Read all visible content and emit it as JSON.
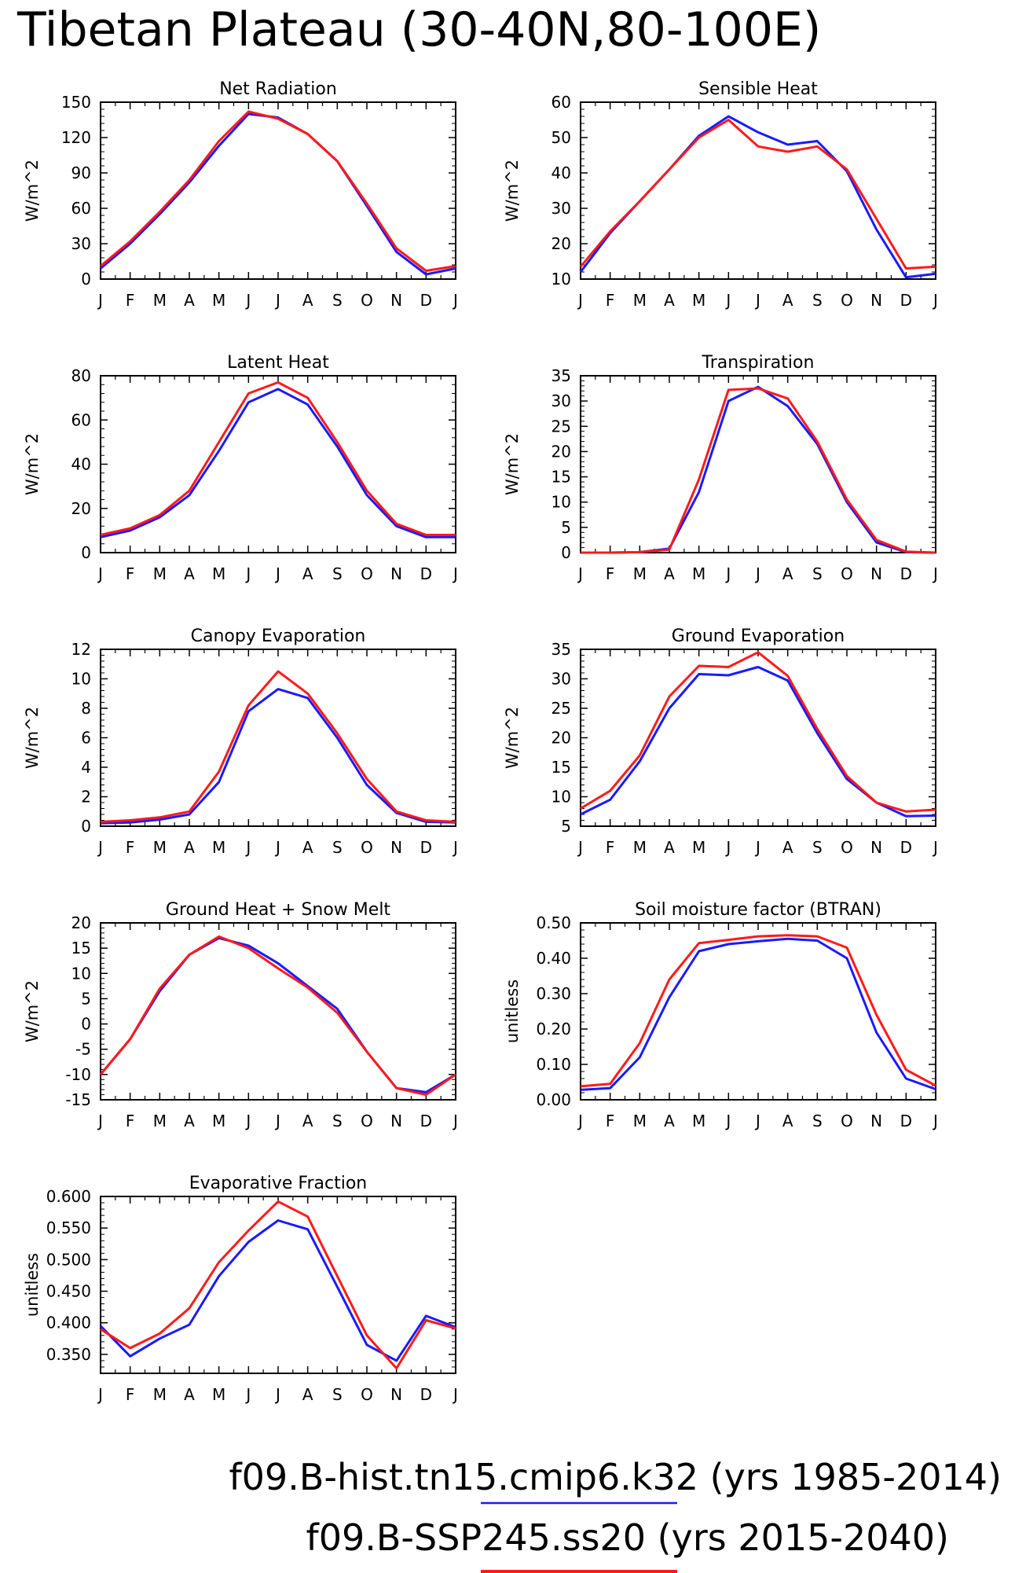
{
  "title": "Tibetan Plateau (30-40N,80-100E)",
  "legend": [
    {
      "text": "f09.B-hist.tn15.cmip6.k32 (yrs 1985-2014)",
      "color": "#1a1aff"
    },
    {
      "text": "f09.B-SSP245.ss20 (yrs 2015-2040)",
      "color": "#ff1a1a"
    }
  ],
  "colors": {
    "hist": "#1a1aff",
    "ssp": "#ff1a1a"
  },
  "chart_data": [
    {
      "type": "line",
      "title": "Net Radiation",
      "ylabel": "W/m^2",
      "categories": [
        "J",
        "F",
        "M",
        "A",
        "M",
        "J",
        "J",
        "A",
        "S",
        "O",
        "N",
        "D",
        "J"
      ],
      "ylim": [
        0,
        150
      ],
      "yticks": [
        0,
        30,
        60,
        90,
        120,
        150
      ],
      "ytick_labels": [
        "0",
        "30",
        "60",
        "90",
        "120",
        "150"
      ],
      "series": [
        {
          "color": "#1a1aff",
          "values": [
            9,
            30,
            55,
            82,
            113,
            140,
            137,
            123,
            100,
            62,
            23,
            4,
            9
          ]
        },
        {
          "color": "#ff1a1a",
          "values": [
            11,
            32,
            57,
            84,
            117,
            142,
            136,
            123,
            100,
            64,
            26,
            7,
            11
          ]
        }
      ]
    },
    {
      "type": "line",
      "title": "Sensible Heat",
      "ylabel": "W/m^2",
      "categories": [
        "J",
        "F",
        "M",
        "A",
        "M",
        "J",
        "J",
        "A",
        "S",
        "O",
        "N",
        "D",
        "J"
      ],
      "ylim": [
        10,
        60
      ],
      "yticks": [
        10,
        20,
        30,
        40,
        50,
        60
      ],
      "ytick_labels": [
        "10",
        "20",
        "30",
        "40",
        "50",
        "60"
      ],
      "series": [
        {
          "color": "#1a1aff",
          "values": [
            12,
            23,
            32,
            41,
            50.5,
            56,
            51.5,
            48,
            49,
            40.5,
            24,
            10.5,
            11.5
          ]
        },
        {
          "color": "#ff1a1a",
          "values": [
            13.5,
            23.5,
            32,
            41,
            50,
            55,
            47.5,
            46,
            47.5,
            41,
            27,
            13,
            13.5
          ]
        }
      ]
    },
    {
      "type": "line",
      "title": "Latent Heat",
      "ylabel": "W/m^2",
      "categories": [
        "J",
        "F",
        "M",
        "A",
        "M",
        "J",
        "J",
        "A",
        "S",
        "O",
        "N",
        "D",
        "J"
      ],
      "ylim": [
        0,
        80
      ],
      "yticks": [
        0,
        20,
        40,
        60,
        80
      ],
      "ytick_labels": [
        "0",
        "20",
        "40",
        "60",
        "80"
      ],
      "series": [
        {
          "color": "#1a1aff",
          "values": [
            7,
            10,
            16,
            26,
            46,
            68,
            74,
            67,
            48,
            26,
            12,
            7,
            7
          ]
        },
        {
          "color": "#ff1a1a",
          "values": [
            8,
            11,
            17,
            28,
            50,
            72,
            77,
            70,
            50,
            28,
            13,
            8,
            8
          ]
        }
      ]
    },
    {
      "type": "line",
      "title": "Transpiration",
      "ylabel": "W/m^2",
      "categories": [
        "J",
        "F",
        "M",
        "A",
        "M",
        "J",
        "J",
        "A",
        "S",
        "O",
        "N",
        "D",
        "J"
      ],
      "ylim": [
        0,
        35
      ],
      "yticks": [
        0,
        5,
        10,
        15,
        20,
        25,
        30,
        35
      ],
      "ytick_labels": [
        "0",
        "5",
        "10",
        "15",
        "20",
        "25",
        "30",
        "35"
      ],
      "series": [
        {
          "color": "#1a1aff",
          "values": [
            0,
            0,
            0.1,
            0.8,
            12,
            30,
            32.8,
            29,
            21.5,
            10,
            2,
            0.1,
            0
          ]
        },
        {
          "color": "#ff1a1a",
          "values": [
            0,
            0,
            0.1,
            0.6,
            14.5,
            32.2,
            32.5,
            30.5,
            22,
            10.5,
            2.5,
            0.2,
            0
          ]
        }
      ]
    },
    {
      "type": "line",
      "title": "Canopy Evaporation",
      "ylabel": "W/m^2",
      "categories": [
        "J",
        "F",
        "M",
        "A",
        "M",
        "J",
        "J",
        "A",
        "S",
        "O",
        "N",
        "D",
        "J"
      ],
      "ylim": [
        0,
        12
      ],
      "yticks": [
        0,
        2,
        4,
        6,
        8,
        10,
        12
      ],
      "ytick_labels": [
        "0",
        "2",
        "4",
        "6",
        "8",
        "10",
        "12"
      ],
      "series": [
        {
          "color": "#1a1aff",
          "values": [
            0.2,
            0.25,
            0.45,
            0.8,
            3,
            7.8,
            9.3,
            8.7,
            6,
            2.8,
            0.9,
            0.3,
            0.25
          ]
        },
        {
          "color": "#ff1a1a",
          "values": [
            0.3,
            0.4,
            0.6,
            1.0,
            3.7,
            8.2,
            10.5,
            9,
            6.3,
            3.2,
            1.0,
            0.4,
            0.3
          ]
        }
      ]
    },
    {
      "type": "line",
      "title": "Ground Evaporation",
      "ylabel": "W/m^2",
      "categories": [
        "J",
        "F",
        "M",
        "A",
        "M",
        "J",
        "J",
        "A",
        "S",
        "O",
        "N",
        "D",
        "J"
      ],
      "ylim": [
        5,
        35
      ],
      "yticks": [
        5,
        10,
        15,
        20,
        25,
        30,
        35
      ],
      "ytick_labels": [
        "5",
        "10",
        "15",
        "20",
        "25",
        "30",
        "35"
      ],
      "series": [
        {
          "color": "#1a1aff",
          "values": [
            7,
            9.5,
            16,
            25,
            30.8,
            30.6,
            32,
            29.7,
            20.8,
            13,
            9,
            6.7,
            6.8
          ]
        },
        {
          "color": "#ff1a1a",
          "values": [
            8,
            11,
            17,
            27,
            32.2,
            32,
            34.5,
            30.5,
            21.5,
            13.5,
            9,
            7.5,
            7.8
          ]
        }
      ]
    },
    {
      "type": "line",
      "title": "Ground Heat + Snow Melt",
      "ylabel": "W/m^2",
      "categories": [
        "J",
        "F",
        "M",
        "A",
        "M",
        "J",
        "J",
        "A",
        "S",
        "O",
        "N",
        "D",
        "J"
      ],
      "ylim": [
        -15,
        20
      ],
      "yticks": [
        -15,
        -10,
        -5,
        0,
        5,
        10,
        15,
        20
      ],
      "ytick_labels": [
        "-15",
        "-10",
        "-5",
        "0",
        "5",
        "10",
        "15",
        "20"
      ],
      "series": [
        {
          "color": "#1a1aff",
          "values": [
            -10,
            -3,
            6.5,
            13.7,
            17,
            15.5,
            12,
            7.5,
            3,
            -5.5,
            -12.7,
            -13.5,
            -10
          ]
        },
        {
          "color": "#ff1a1a",
          "values": [
            -10,
            -3,
            7,
            13.7,
            17.3,
            15,
            11,
            7.2,
            2.2,
            -5.5,
            -12.7,
            -14,
            -10
          ]
        }
      ]
    },
    {
      "type": "line",
      "title": "Soil moisture factor (BTRAN)",
      "ylabel": "unitless",
      "categories": [
        "J",
        "F",
        "M",
        "A",
        "M",
        "J",
        "J",
        "A",
        "S",
        "O",
        "N",
        "D",
        "J"
      ],
      "ylim": [
        0,
        0.5
      ],
      "yticks": [
        0,
        0.1,
        0.2,
        0.3,
        0.4,
        0.5
      ],
      "ytick_labels": [
        "0.00",
        "0.10",
        "0.20",
        "0.30",
        "0.40",
        "0.50"
      ],
      "series": [
        {
          "color": "#1a1aff",
          "values": [
            0.028,
            0.033,
            0.12,
            0.29,
            0.42,
            0.44,
            0.448,
            0.455,
            0.45,
            0.4,
            0.19,
            0.06,
            0.03
          ]
        },
        {
          "color": "#ff1a1a",
          "values": [
            0.038,
            0.045,
            0.16,
            0.34,
            0.443,
            0.452,
            0.462,
            0.465,
            0.462,
            0.43,
            0.24,
            0.085,
            0.04
          ]
        }
      ]
    },
    {
      "type": "line",
      "title": "Evaporative Fraction",
      "ylabel": "unitless",
      "categories": [
        "J",
        "F",
        "M",
        "A",
        "M",
        "J",
        "J",
        "A",
        "S",
        "O",
        "N",
        "D",
        "J"
      ],
      "ylim": [
        0.32,
        0.6
      ],
      "yticks": [
        0.35,
        0.4,
        0.45,
        0.5,
        0.55,
        0.6
      ],
      "ytick_labels": [
        "0.350",
        "0.400",
        "0.450",
        "0.500",
        "0.550",
        "0.600"
      ],
      "series": [
        {
          "color": "#1a1aff",
          "values": [
            0.395,
            0.347,
            0.375,
            0.397,
            0.474,
            0.528,
            0.562,
            0.548,
            0.457,
            0.365,
            0.34,
            0.411,
            0.393
          ]
        },
        {
          "color": "#ff1a1a",
          "values": [
            0.39,
            0.36,
            0.383,
            0.423,
            0.496,
            0.546,
            0.592,
            0.568,
            0.474,
            0.38,
            0.328,
            0.404,
            0.391
          ]
        }
      ]
    }
  ]
}
